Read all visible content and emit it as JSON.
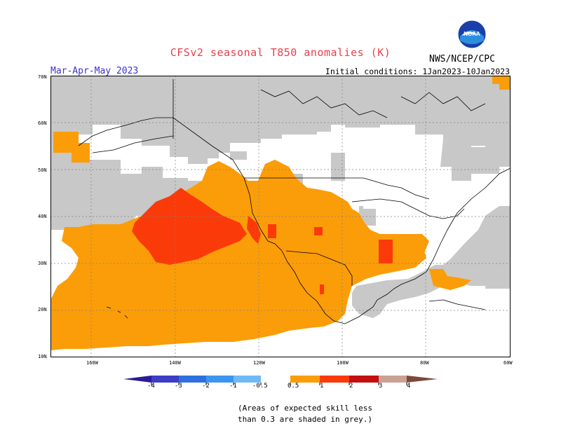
{
  "title": "CFSv2 seasonal T850 anomalies (K)",
  "season": "Mar-Apr-May 2023",
  "initial_conditions": "Initial conditions: 1Jan2023-10Jan2023",
  "agency": "NWS/NCEP/CPC",
  "logo_text": "NOAA",
  "lat_labels": [
    "70N",
    "60N",
    "50N",
    "40N",
    "30N",
    "20N",
    "10N"
  ],
  "lon_labels": [
    "160W",
    "140W",
    "120W",
    "100W",
    "80W",
    "60W"
  ],
  "colorbar": {
    "labels": [
      "-4",
      "-3",
      "-2",
      "-1",
      "-0.5",
      "0.5",
      "1",
      "2",
      "3",
      "4"
    ],
    "colors": [
      "#2b1a99",
      "#3d3dc6",
      "#2f6fe0",
      "#3c96ee",
      "#6fb9f7",
      "#ffffff",
      "#fb9d08",
      "#fb3a0a",
      "#c20f0f",
      "#8c0f0f",
      "#c9a294",
      "#7b4a3a"
    ]
  },
  "note": [
    "(Areas of expected skill less",
    "than 0.3 are shaded in grey.)"
  ],
  "colors": {
    "orange": "#fb9d08",
    "red": "#fb3a0a",
    "grey": "#c8c8c8",
    "title": "#e5404a",
    "season": "#3a33c8"
  }
}
